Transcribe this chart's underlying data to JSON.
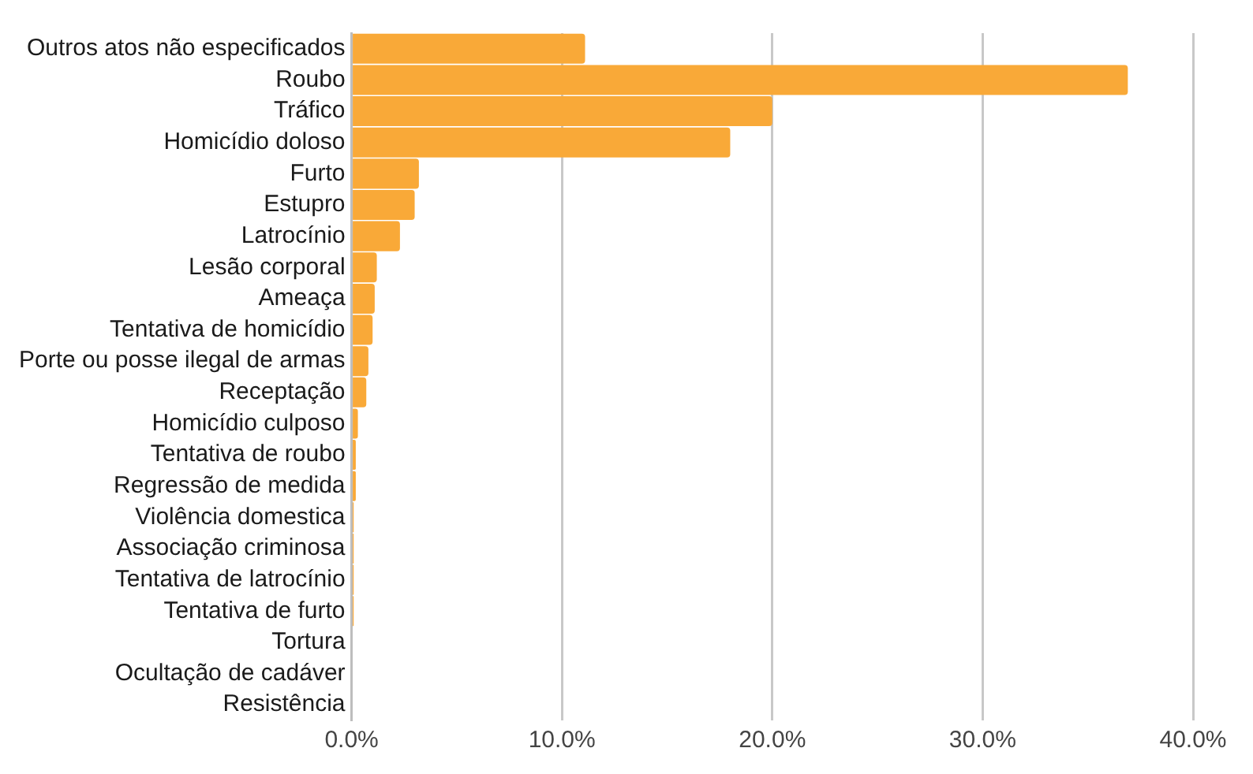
{
  "chart_data": {
    "type": "bar",
    "orientation": "horizontal",
    "categories": [
      "Outros atos não especificados",
      "Roubo",
      "Tráfico",
      "Homicídio doloso",
      "Furto",
      "Estupro",
      "Latrocínio",
      "Lesão corporal",
      "Ameaça",
      "Tentativa de homicídio",
      "Porte ou posse ilegal de armas",
      "Receptação",
      "Homicídio culposo",
      "Tentativa de roubo",
      "Regressão de medida",
      "Violência domestica",
      "Associação criminosa",
      "Tentativa de latrocínio",
      "Tentativa de furto",
      "Tortura",
      "Ocultação de cadáver",
      "Resistência"
    ],
    "values": [
      11.1,
      36.9,
      20.0,
      18.0,
      3.2,
      3.0,
      2.3,
      1.2,
      1.1,
      1.0,
      0.8,
      0.7,
      0.3,
      0.2,
      0.2,
      0.1,
      0.1,
      0.1,
      0.1,
      0,
      0,
      0
    ],
    "color": "#f9a938",
    "xlim": [
      0,
      40
    ],
    "xticks": [
      {
        "value": 0,
        "label": "0.0%"
      },
      {
        "value": 10,
        "label": "10.0%"
      },
      {
        "value": 20,
        "label": "20.0%"
      },
      {
        "value": 30,
        "label": "30.0%"
      },
      {
        "value": 40,
        "label": "40.0%"
      }
    ],
    "grid": "x",
    "legend": false
  }
}
